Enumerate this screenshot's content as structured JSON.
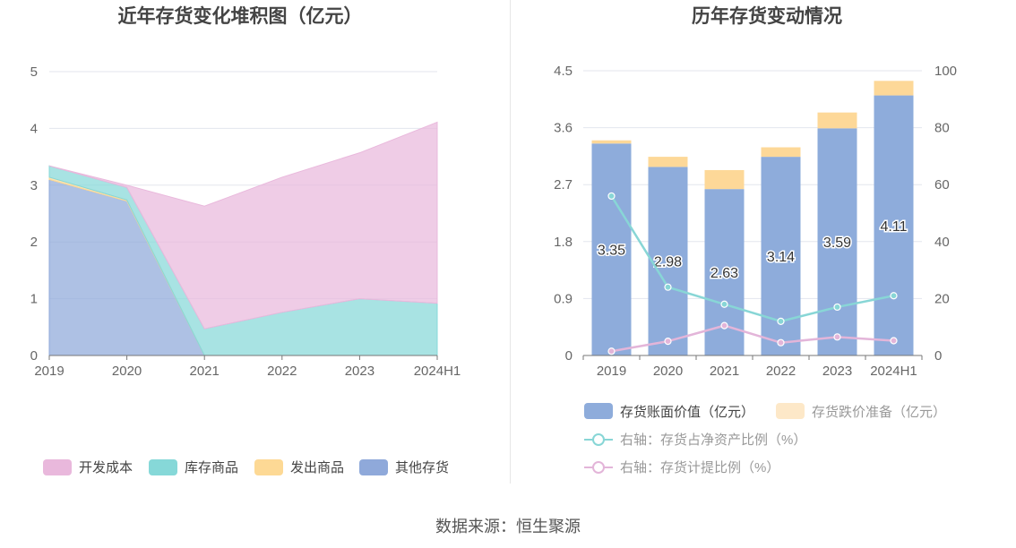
{
  "source_label": "数据来源：恒生聚源",
  "chart_data": [
    {
      "type": "area",
      "stacked": true,
      "title": "近年存货变化堆积图（亿元）",
      "x": [
        "2019",
        "2020",
        "2021",
        "2022",
        "2023",
        "2024H1"
      ],
      "yticks": [
        "0",
        "1",
        "2",
        "3",
        "4",
        "5"
      ],
      "ylim": [
        0,
        5
      ],
      "grid": true,
      "legend_position": "bottom",
      "series": [
        {
          "name": "其他存货",
          "color": "#8fa9da",
          "values": [
            3.1,
            2.72,
            0,
            0,
            0,
            0
          ]
        },
        {
          "name": "发出商品",
          "color": "#fdd995",
          "values": [
            0.04,
            0.02,
            0,
            0,
            0,
            0
          ]
        },
        {
          "name": "库存商品",
          "color": "#86d8d8",
          "values": [
            0.2,
            0.22,
            0.47,
            0.76,
            1.0,
            0.92
          ]
        },
        {
          "name": "开发成本",
          "color": "#e9b8dc",
          "values": [
            0,
            0.04,
            2.16,
            2.38,
            2.57,
            3.19
          ]
        }
      ],
      "legend_order": [
        "开发成本",
        "库存商品",
        "发出商品",
        "其他存货"
      ]
    },
    {
      "type": "bar",
      "stacked": true,
      "title": "历年存货变动情况",
      "categories": [
        "2019",
        "2020",
        "2021",
        "2022",
        "2023",
        "2024H1"
      ],
      "yticks_left": [
        "0",
        "0.9",
        "1.8",
        "2.7",
        "3.6",
        "4.5"
      ],
      "ylim_left": [
        0,
        4.5
      ],
      "yticks_right": [
        "0",
        "20",
        "40",
        "60",
        "80",
        "100"
      ],
      "ylim_right": [
        0,
        100
      ],
      "grid": true,
      "legend_position": "bottom",
      "bar_series": [
        {
          "name": "存货账面价值（亿元）",
          "color": "#8eacdb",
          "values": [
            3.35,
            2.98,
            2.63,
            3.14,
            3.59,
            4.11
          ],
          "labels": [
            "3.35",
            "2.98",
            "2.63",
            "3.14",
            "3.59",
            "4.11"
          ]
        },
        {
          "name": "存货跌价准备（亿元）",
          "color": "#fdd898",
          "legend_color": "#fde8c8",
          "values": [
            0.05,
            0.16,
            0.3,
            0.15,
            0.25,
            0.23
          ]
        }
      ],
      "line_series": [
        {
          "name": "右轴：存货占净资产比例（%）",
          "color": "#88d6d6",
          "axis": "right",
          "values": [
            56,
            24,
            18,
            12,
            17,
            21
          ]
        },
        {
          "name": "右轴：存货计提比例（%）",
          "color": "#e3b5d9",
          "axis": "right",
          "values": [
            1.5,
            5,
            10.5,
            4.5,
            6.5,
            5.2
          ]
        }
      ]
    }
  ]
}
